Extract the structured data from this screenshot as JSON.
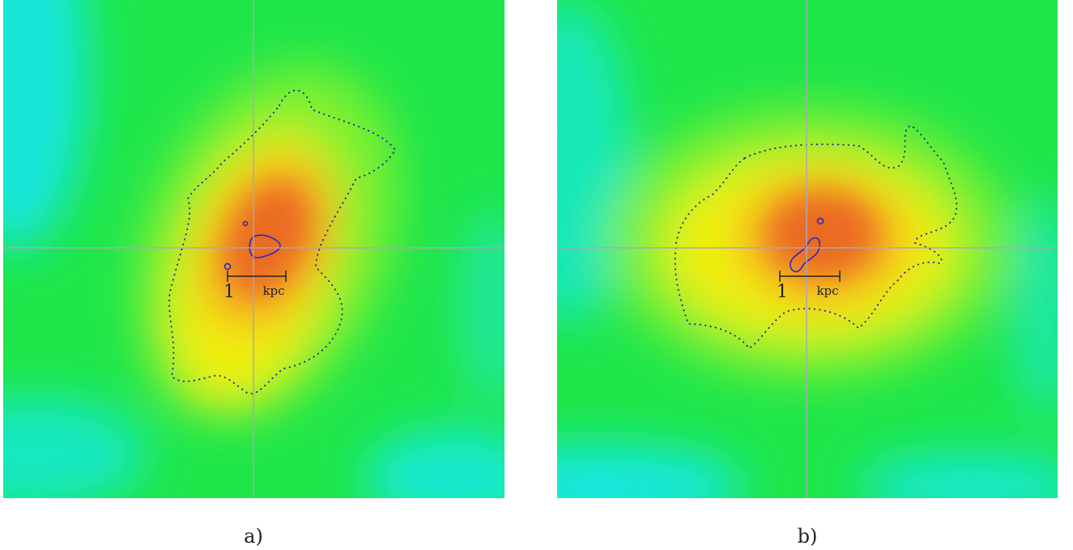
{
  "panels": [
    {
      "label": "a)",
      "scale_bar": {
        "number": 1,
        "unit": "kpc"
      }
    },
    {
      "label": "b)",
      "scale_bar": {
        "number": 1,
        "unit": "kpc"
      }
    }
  ]
}
